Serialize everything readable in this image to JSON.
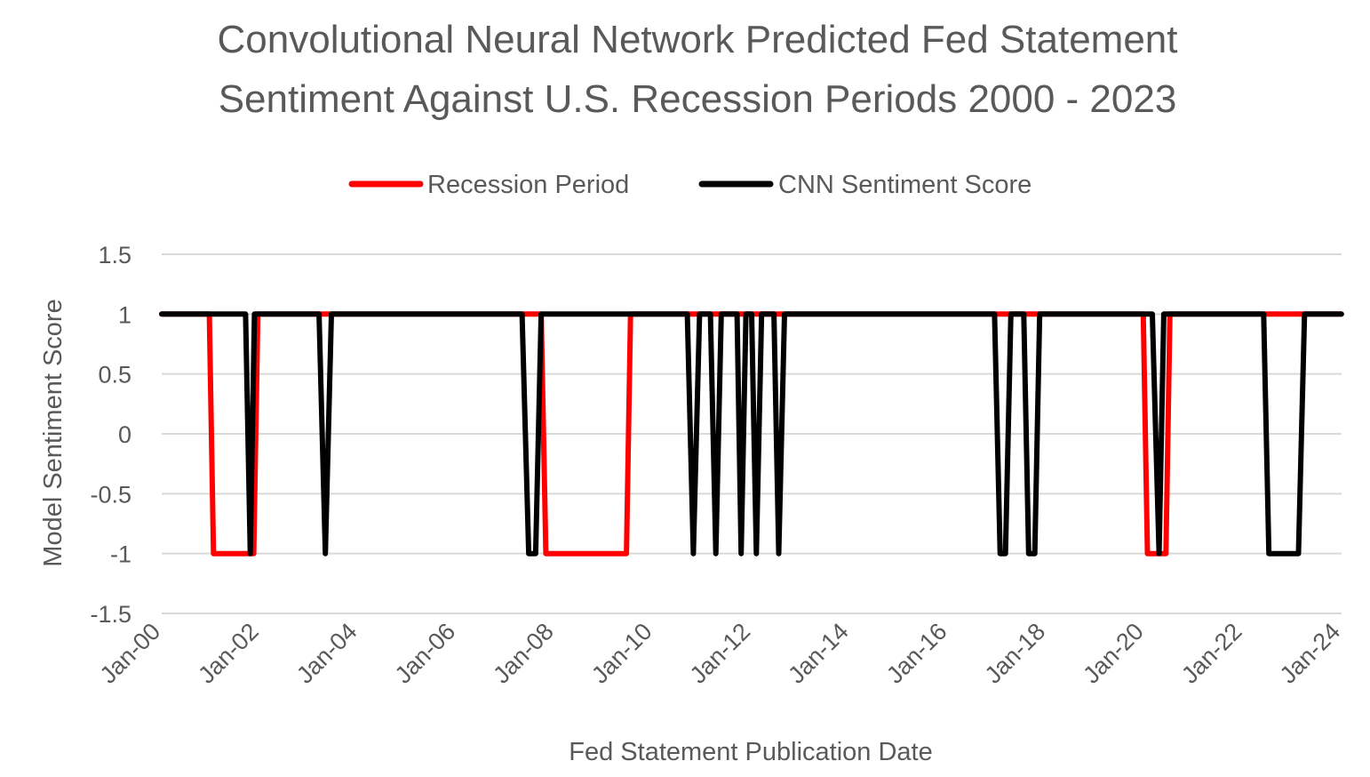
{
  "chart_data": {
    "type": "line",
    "title_lines": [
      "Convolutional Neural Network Predicted Fed Statement",
      "Sentiment Against U.S. Recession Periods 2000 - 2023"
    ],
    "xlabel": "Fed Statement Publication Date",
    "ylabel": "Model Sentiment Score",
    "x_tick_labels": [
      "Jan-00",
      "Jan-02",
      "Jan-04",
      "Jan-06",
      "Jan-08",
      "Jan-10",
      "Jan-12",
      "Jan-14",
      "Jan-16",
      "Jan-18",
      "Jan-20",
      "Jan-22",
      "Jan-24"
    ],
    "y_tick_labels": [
      "1.5",
      "1",
      "0.5",
      "0",
      "-0.5",
      "-1",
      "-1.5"
    ],
    "xlim": [
      "2000-01-01",
      "2024-01-01"
    ],
    "ylim": [
      -1.5,
      1.5
    ],
    "y_ticks": [
      1.5,
      1,
      0.5,
      0,
      -0.5,
      -1,
      -1.5
    ],
    "grid": true,
    "legend_position": "top",
    "series": [
      {
        "name": "Recession Period",
        "color": "#ff0000",
        "points": [
          [
            "2000-01-01",
            1
          ],
          [
            "2000-12-20",
            1
          ],
          [
            "2001-01-20",
            -1
          ],
          [
            "2001-11-15",
            -1
          ],
          [
            "2001-12-15",
            1
          ],
          [
            "2007-09-20",
            1
          ],
          [
            "2007-10-25",
            -1
          ],
          [
            "2009-06-15",
            -1
          ],
          [
            "2009-07-15",
            1
          ],
          [
            "2019-12-20",
            1
          ],
          [
            "2020-01-20",
            -1
          ],
          [
            "2020-06-05",
            -1
          ],
          [
            "2020-07-05",
            1
          ],
          [
            "2023-12-31",
            1
          ]
        ]
      },
      {
        "name": "CNN Sentiment Score",
        "color": "#000000",
        "points": [
          [
            "2000-01-01",
            1
          ],
          [
            "2001-09-15",
            1
          ],
          [
            "2001-10-20",
            -1
          ],
          [
            "2001-11-20",
            1
          ],
          [
            "2003-03-15",
            1
          ],
          [
            "2003-05-01",
            -1
          ],
          [
            "2003-06-15",
            1
          ],
          [
            "2007-05-01",
            1
          ],
          [
            "2007-06-20",
            -1
          ],
          [
            "2007-08-10",
            -1
          ],
          [
            "2007-09-20",
            1
          ],
          [
            "2010-09-10",
            1
          ],
          [
            "2010-10-25",
            -1
          ],
          [
            "2010-12-10",
            1
          ],
          [
            "2011-03-01",
            1
          ],
          [
            "2011-04-10",
            -1
          ],
          [
            "2011-05-20",
            1
          ],
          [
            "2011-09-15",
            1
          ],
          [
            "2011-10-15",
            -1
          ],
          [
            "2011-11-20",
            1
          ],
          [
            "2012-01-01",
            1
          ],
          [
            "2012-02-05",
            -1
          ],
          [
            "2012-03-15",
            1
          ],
          [
            "2012-06-15",
            1
          ],
          [
            "2012-07-20",
            -1
          ],
          [
            "2012-09-01",
            1
          ],
          [
            "2016-12-10",
            1
          ],
          [
            "2017-01-20",
            -1
          ],
          [
            "2017-03-01",
            -1
          ],
          [
            "2017-04-10",
            1
          ],
          [
            "2017-07-15",
            1
          ],
          [
            "2017-08-20",
            -1
          ],
          [
            "2017-10-05",
            -1
          ],
          [
            "2017-11-10",
            1
          ],
          [
            "2020-02-25",
            1
          ],
          [
            "2020-04-15",
            -1
          ],
          [
            "2020-05-20",
            1
          ],
          [
            "2022-06-01",
            1
          ],
          [
            "2022-07-10",
            -1
          ],
          [
            "2023-02-15",
            -1
          ],
          [
            "2023-04-01",
            1
          ],
          [
            "2023-12-31",
            1
          ]
        ]
      }
    ]
  }
}
